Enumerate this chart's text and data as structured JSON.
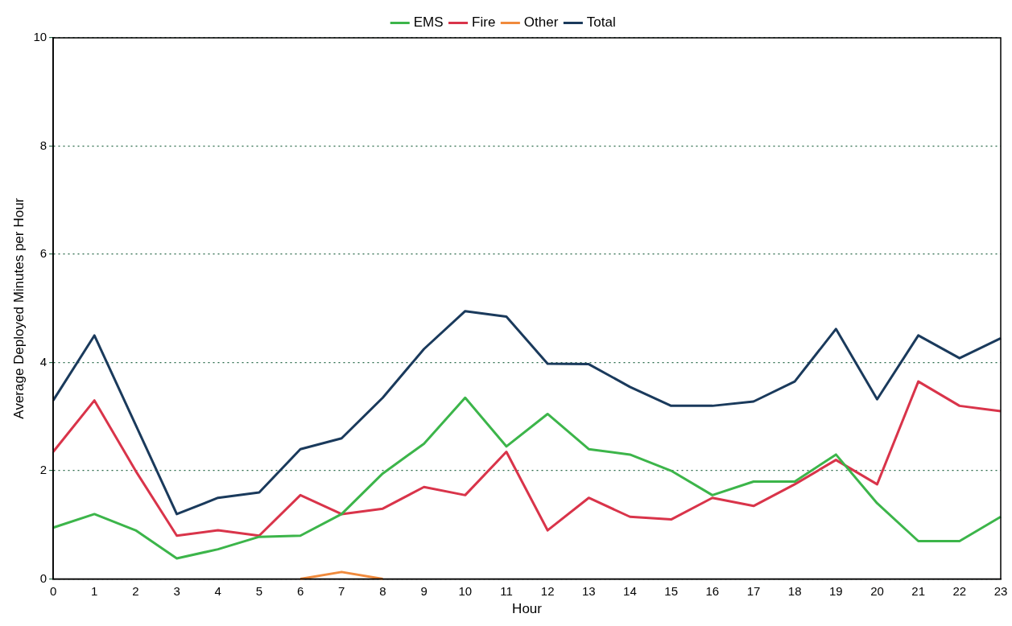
{
  "chart_data": {
    "type": "line",
    "xlabel": "Hour",
    "ylabel": "Average Deployed Minutes per Hour",
    "x": [
      0,
      1,
      2,
      3,
      4,
      5,
      6,
      7,
      8,
      9,
      10,
      11,
      12,
      13,
      14,
      15,
      16,
      17,
      18,
      19,
      20,
      21,
      22,
      23
    ],
    "series": [
      {
        "name": "EMS",
        "color": "#3cb54a",
        "values": [
          0.95,
          1.2,
          0.9,
          0.38,
          0.55,
          0.78,
          0.8,
          1.2,
          1.95,
          2.5,
          3.35,
          2.45,
          3.05,
          2.4,
          2.3,
          2.0,
          1.55,
          1.8,
          1.8,
          2.3,
          1.4,
          0.7,
          0.7,
          1.15
        ]
      },
      {
        "name": "Fire",
        "color": "#d9344a",
        "values": [
          2.35,
          3.3,
          2.0,
          0.8,
          0.9,
          0.8,
          1.55,
          1.2,
          1.3,
          1.7,
          1.55,
          2.35,
          0.9,
          1.5,
          1.15,
          1.1,
          1.5,
          1.35,
          1.75,
          2.2,
          1.75,
          3.65,
          3.2,
          3.1
        ]
      },
      {
        "name": "Other",
        "color": "#f08a3c",
        "values": [
          null,
          null,
          null,
          null,
          null,
          null,
          0,
          0.13,
          0,
          null,
          null,
          null,
          null,
          null,
          null,
          null,
          null,
          null,
          null,
          null,
          null,
          null,
          null,
          null
        ]
      },
      {
        "name": "Total",
        "color": "#1a3a5c",
        "values": [
          3.3,
          4.5,
          2.85,
          1.2,
          1.5,
          1.6,
          2.4,
          2.6,
          3.35,
          4.25,
          4.95,
          4.85,
          3.98,
          3.97,
          3.55,
          3.2,
          3.2,
          3.28,
          3.65,
          4.62,
          3.32,
          4.5,
          4.08,
          4.45
        ]
      }
    ],
    "xlim": [
      0,
      23
    ],
    "xticks": [
      0,
      1,
      2,
      3,
      4,
      5,
      6,
      7,
      8,
      9,
      10,
      11,
      12,
      13,
      14,
      15,
      16,
      17,
      18,
      19,
      20,
      21,
      22,
      23
    ],
    "ylim": [
      0,
      10
    ],
    "yticks": [
      0,
      2,
      4,
      6,
      8,
      10
    ],
    "grid": "y",
    "legend": "top",
    "marker": "none",
    "line_style": "solid"
  }
}
